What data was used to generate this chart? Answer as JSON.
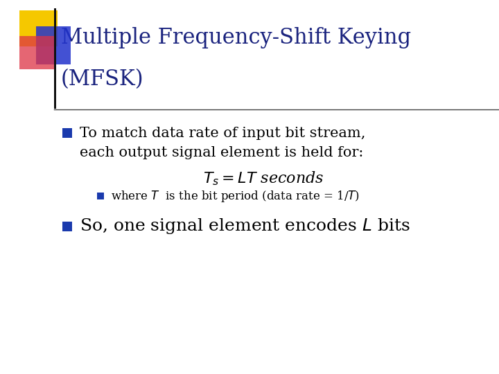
{
  "title_line1": "Multiple Frequency-Shift Keying",
  "title_line2": "(MFSK)",
  "title_color": "#1a237e",
  "title_fontsize": 22,
  "bg_color": "#ffffff",
  "bullet_color": "#1a3aad",
  "bullet1_line1": "To match data rate of input bit stream,",
  "bullet1_line2": "each output signal element is held for:",
  "equation": "$T_s{=}LT$ seconds",
  "subbullet": "where $T$  is the bit period (data rate = 1/$T$)",
  "bullet2": "So, one signal element encodes $L$ bits",
  "body_fontsize": 15,
  "sub_fontsize": 12,
  "bullet2_fontsize": 18,
  "eq_fontsize": 16
}
